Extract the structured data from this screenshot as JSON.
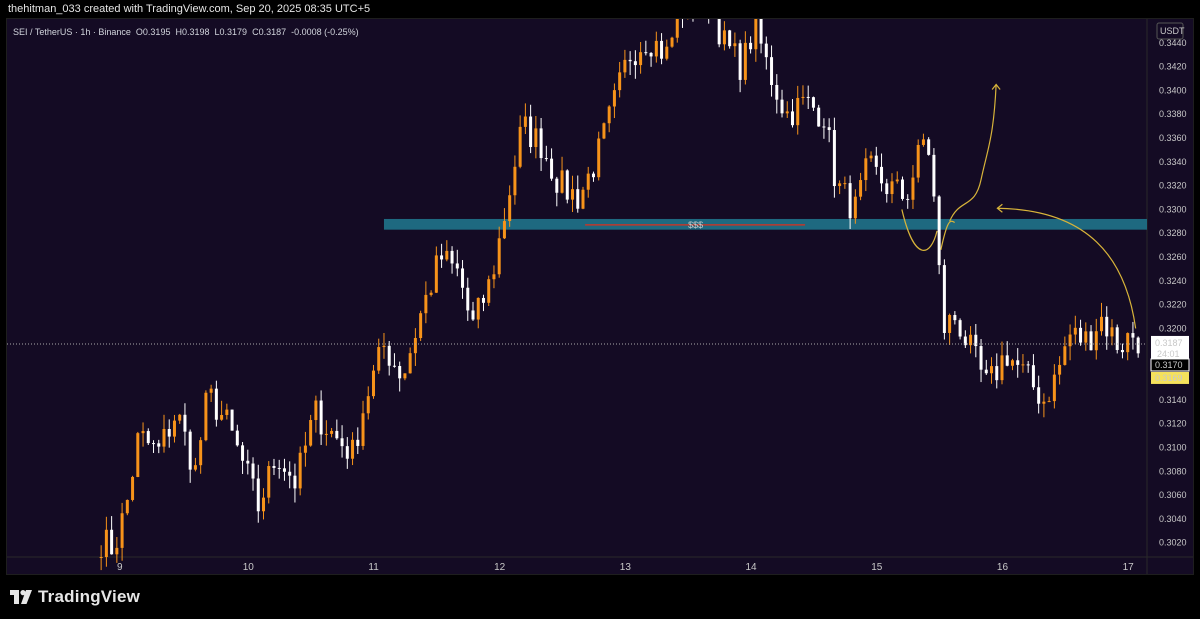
{
  "header": {
    "text": "thehitman_033 created with TradingView.com, Sep 20, 2025 08:35 UTC+5"
  },
  "footer": {
    "logo_text": "TradingView",
    "logo_icon": "tradingview-logo-icon"
  },
  "legend": {
    "symbol": "SEI / TetherUS · 1h · Binance",
    "open": "O0.3195",
    "high": "H0.3198",
    "low": "L0.3179",
    "close": "C0.3187",
    "change": "-0.0008 (-0.25%)"
  },
  "colors": {
    "background": "#140b24",
    "up_candle": "#f7931a",
    "down_candle": "#ffffff",
    "zone": "#1f6f86",
    "annotation": "#d8b43a",
    "level_line": "#c0392b"
  },
  "chart_data": {
    "type": "candlestick",
    "currency": "USDT",
    "y_axis": {
      "ticks": [
        "0.3440",
        "0.3420",
        "0.3400",
        "0.3380",
        "0.3360",
        "0.3340",
        "0.3320",
        "0.3300",
        "0.3280",
        "0.3260",
        "0.3240",
        "0.3220",
        "0.3200",
        "0.3180",
        "0.3160",
        "0.3140",
        "0.3120",
        "0.3100",
        "0.3080",
        "0.3060",
        "0.3040",
        "0.3020"
      ],
      "min": 0.3008,
      "max": 0.346
    },
    "x_axis": {
      "day_labels": [
        "9",
        "10",
        "11",
        "12",
        "13",
        "14",
        "15",
        "16",
        "17"
      ],
      "first_day": 8.8,
      "last_day": 17.2
    },
    "price_labels": {
      "last": "0.3187",
      "countdown": "24:01",
      "low_line": "0.3170",
      "marked": "0.3169"
    },
    "current_price": 0.3187,
    "zone": {
      "low": 0.3283,
      "high": 0.3292,
      "from_day": 11.1,
      "to_day": 17.2
    },
    "level": {
      "label": "$$$",
      "price": 0.3287,
      "from_day": 12.7,
      "to_day": 14.45
    },
    "keypoints": [
      [
        8.85,
        0.3022
      ],
      [
        8.95,
        0.3015
      ],
      [
        9.05,
        0.305
      ],
      [
        9.15,
        0.311
      ],
      [
        9.3,
        0.3095
      ],
      [
        9.45,
        0.313
      ],
      [
        9.6,
        0.308
      ],
      [
        9.7,
        0.3145
      ],
      [
        9.85,
        0.312
      ],
      [
        10.0,
        0.308
      ],
      [
        10.1,
        0.305
      ],
      [
        10.25,
        0.3095
      ],
      [
        10.4,
        0.307
      ],
      [
        10.55,
        0.313
      ],
      [
        10.7,
        0.311
      ],
      [
        10.85,
        0.3095
      ],
      [
        10.95,
        0.314
      ],
      [
        11.1,
        0.3185
      ],
      [
        11.25,
        0.316
      ],
      [
        11.4,
        0.3215
      ],
      [
        11.55,
        0.326
      ],
      [
        11.7,
        0.3245
      ],
      [
        11.8,
        0.32
      ],
      [
        11.95,
        0.324
      ],
      [
        12.05,
        0.329
      ],
      [
        12.2,
        0.337
      ],
      [
        12.35,
        0.3355
      ],
      [
        12.5,
        0.332
      ],
      [
        12.65,
        0.331
      ],
      [
        12.8,
        0.3345
      ],
      [
        12.95,
        0.3395
      ],
      [
        13.05,
        0.343
      ],
      [
        13.2,
        0.3445
      ],
      [
        13.35,
        0.343
      ],
      [
        13.45,
        0.3465
      ],
      [
        13.55,
        0.3475
      ],
      [
        13.7,
        0.3478
      ],
      [
        13.8,
        0.344
      ],
      [
        13.95,
        0.342
      ],
      [
        14.05,
        0.3455
      ],
      [
        14.15,
        0.342
      ],
      [
        14.3,
        0.338
      ],
      [
        14.45,
        0.339
      ],
      [
        14.6,
        0.338
      ],
      [
        14.7,
        0.332
      ],
      [
        14.85,
        0.33
      ],
      [
        14.95,
        0.3335
      ],
      [
        15.1,
        0.332
      ],
      [
        15.25,
        0.331
      ],
      [
        15.4,
        0.336
      ],
      [
        15.45,
        0.3345
      ],
      [
        15.5,
        0.327
      ],
      [
        15.55,
        0.32
      ],
      [
        15.65,
        0.321
      ],
      [
        15.75,
        0.3185
      ],
      [
        15.9,
        0.315
      ],
      [
        16.05,
        0.318
      ],
      [
        16.2,
        0.316
      ],
      [
        16.35,
        0.314
      ],
      [
        16.45,
        0.316
      ],
      [
        16.55,
        0.3195
      ],
      [
        16.7,
        0.319
      ],
      [
        16.8,
        0.321
      ],
      [
        16.95,
        0.3185
      ],
      [
        17.05,
        0.3195
      ],
      [
        17.15,
        0.3187
      ]
    ],
    "annotations": [
      {
        "type": "curve-arrow",
        "label": "projection-up-arrow"
      },
      {
        "type": "curve-arrow",
        "label": "return-to-zone-arrow"
      },
      {
        "type": "curve",
        "label": "sweep-curve"
      }
    ]
  }
}
